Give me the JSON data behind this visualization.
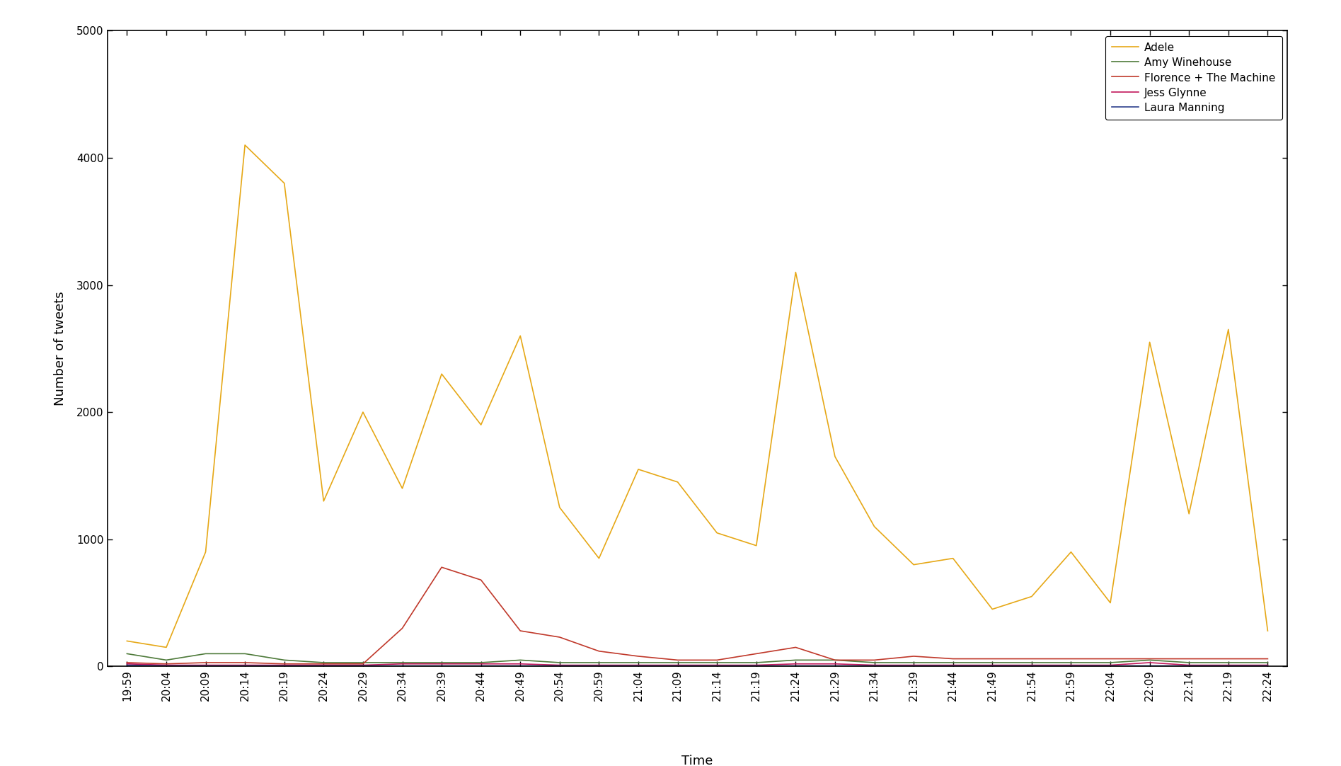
{
  "title": "",
  "xlabel": "Time",
  "ylabel": "Number of tweets",
  "ylim": [
    0,
    5000
  ],
  "yticks": [
    0,
    1000,
    2000,
    3000,
    4000,
    5000
  ],
  "time_labels": [
    "19:59",
    "20:04",
    "20:09",
    "20:14",
    "20:19",
    "20:24",
    "20:29",
    "20:34",
    "20:39",
    "20:44",
    "20:49",
    "20:54",
    "20:59",
    "21:04",
    "21:09",
    "21:14",
    "21:19",
    "21:24",
    "21:29",
    "21:34",
    "21:39",
    "21:44",
    "21:49",
    "21:54",
    "21:59",
    "22:04",
    "22:09",
    "22:14",
    "22:19",
    "22:24"
  ],
  "series": {
    "Adele": {
      "color": "#E6A817",
      "values": [
        200,
        150,
        900,
        4100,
        3800,
        1300,
        2000,
        1400,
        2300,
        1900,
        2600,
        1250,
        850,
        1550,
        1450,
        1050,
        950,
        3100,
        1650,
        1100,
        800,
        850,
        450,
        550,
        900,
        500,
        2550,
        1200,
        2650,
        280
      ]
    },
    "Amy Winehouse": {
      "color": "#4E7A3A",
      "values": [
        100,
        50,
        100,
        100,
        50,
        30,
        30,
        30,
        30,
        30,
        50,
        30,
        30,
        30,
        30,
        30,
        30,
        50,
        50,
        30,
        30,
        30,
        30,
        30,
        30,
        30,
        50,
        30,
        30,
        30
      ]
    },
    "Florence + The Machine": {
      "color": "#C0392B",
      "values": [
        30,
        20,
        30,
        30,
        20,
        20,
        20,
        300,
        780,
        680,
        280,
        230,
        120,
        80,
        50,
        50,
        100,
        150,
        50,
        50,
        80,
        60,
        60,
        60,
        60,
        60,
        60,
        60,
        60,
        60
      ]
    },
    "Jess Glynne": {
      "color": "#C2185B",
      "values": [
        20,
        10,
        10,
        10,
        10,
        10,
        10,
        20,
        20,
        20,
        20,
        10,
        10,
        10,
        10,
        10,
        10,
        20,
        20,
        10,
        10,
        10,
        10,
        10,
        10,
        10,
        30,
        10,
        10,
        10
      ]
    },
    "Laura Manning": {
      "color": "#2C3E8C",
      "values": [
        10,
        5,
        5,
        5,
        5,
        5,
        5,
        5,
        5,
        5,
        5,
        5,
        5,
        5,
        5,
        5,
        5,
        5,
        5,
        5,
        5,
        5,
        5,
        5,
        5,
        5,
        5,
        5,
        5,
        5
      ]
    }
  },
  "background_color": "#FFFFFF",
  "legend_loc": "upper right",
  "linewidth": 1.2,
  "tick_fontsize": 11,
  "label_fontsize": 13,
  "legend_fontsize": 11
}
